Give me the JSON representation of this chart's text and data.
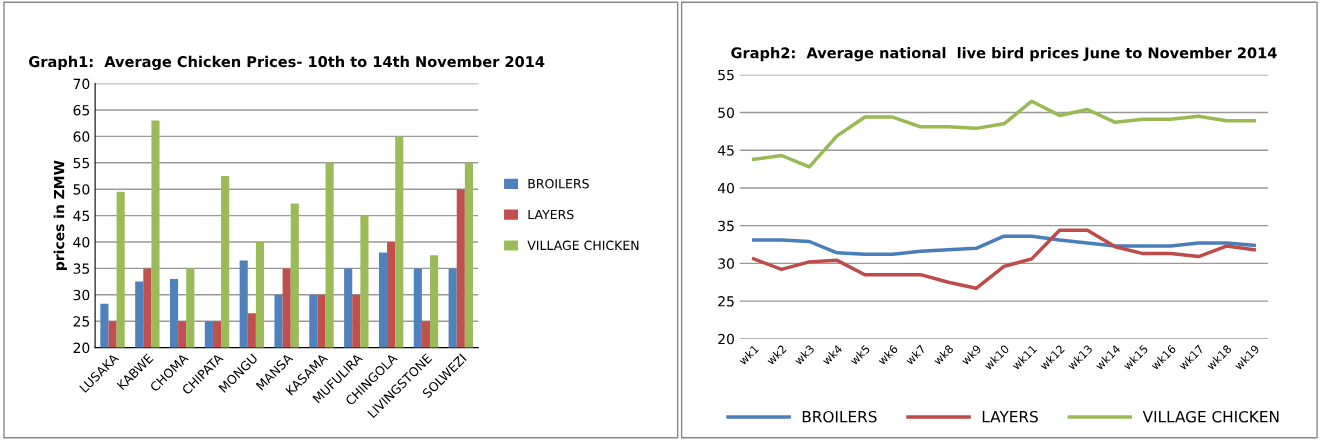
{
  "chart_data": [
    {
      "type": "bar",
      "title": "Graph1:  Average Chicken Prices- 10th to 14th November 2014",
      "ylabel": "prices in ZMW",
      "categories": [
        "LUSAKA",
        "KABWE",
        "CHOMA",
        "CHIPATA",
        "MONGU",
        "MANSA",
        "KASAMA",
        "MUFULIRA",
        "CHINGOLA",
        "LIVINGSTONE",
        "SOLWEZI"
      ],
      "series": [
        {
          "name": "BROILERS",
          "color": "#4f81bd",
          "values": [
            28.3,
            32.5,
            33,
            25,
            36.5,
            30,
            30,
            35,
            38,
            35,
            35
          ]
        },
        {
          "name": "LAYERS",
          "color": "#c0504d",
          "values": [
            25,
            35,
            25,
            25,
            26.5,
            35,
            30,
            30,
            40,
            25,
            50
          ]
        },
        {
          "name": "VILLAGE CHICKEN",
          "color": "#9bbb59",
          "values": [
            49.5,
            63,
            35,
            52.5,
            40,
            47.3,
            55,
            45,
            60,
            37.5,
            55
          ]
        }
      ],
      "ylim": [
        20,
        70
      ],
      "yticks": [
        20,
        25,
        30,
        35,
        40,
        45,
        50,
        55,
        60,
        65,
        70
      ],
      "grid": "y",
      "legend": "right"
    },
    {
      "type": "line",
      "title": "Graph2:  Average national  live bird prices June to November 2014",
      "categories": [
        "wk1",
        "wk2",
        "wk3",
        "wk4",
        "wk5",
        "wk6",
        "wk7",
        "wk8",
        "wk9",
        "wk10",
        "wk11",
        "wk12",
        "wk13",
        "wk14",
        "wk15",
        "wk16",
        "wk17",
        "wk18",
        "wk19"
      ],
      "series": [
        {
          "name": "BROILERS",
          "color": "#4a7ebb",
          "values": [
            33.1,
            33.1,
            32.9,
            31.4,
            31.2,
            31.2,
            31.6,
            31.8,
            32.0,
            33.6,
            33.6,
            33.1,
            32.7,
            32.3,
            32.3,
            32.3,
            32.7,
            32.7,
            32.4
          ]
        },
        {
          "name": "LAYERS",
          "color": "#be4b48",
          "values": [
            30.6,
            29.2,
            30.2,
            30.4,
            28.5,
            28.5,
            28.5,
            27.5,
            26.7,
            29.6,
            30.6,
            34.4,
            34.4,
            32.2,
            31.3,
            31.3,
            30.9,
            32.3,
            31.8
          ]
        },
        {
          "name": "VILLAGE CHICKEN",
          "color": "#98b954",
          "values": [
            43.8,
            44.3,
            42.8,
            46.9,
            49.4,
            49.4,
            48.1,
            48.1,
            47.9,
            48.5,
            51.5,
            49.6,
            50.4,
            48.7,
            49.1,
            49.1,
            49.5,
            48.9,
            48.9
          ]
        }
      ],
      "ylim": [
        20,
        55
      ],
      "yticks": [
        20,
        25,
        30,
        35,
        40,
        45,
        50,
        55
      ],
      "grid": "y",
      "legend": "bottom",
      "marker": "none",
      "line_style": "solid"
    }
  ]
}
